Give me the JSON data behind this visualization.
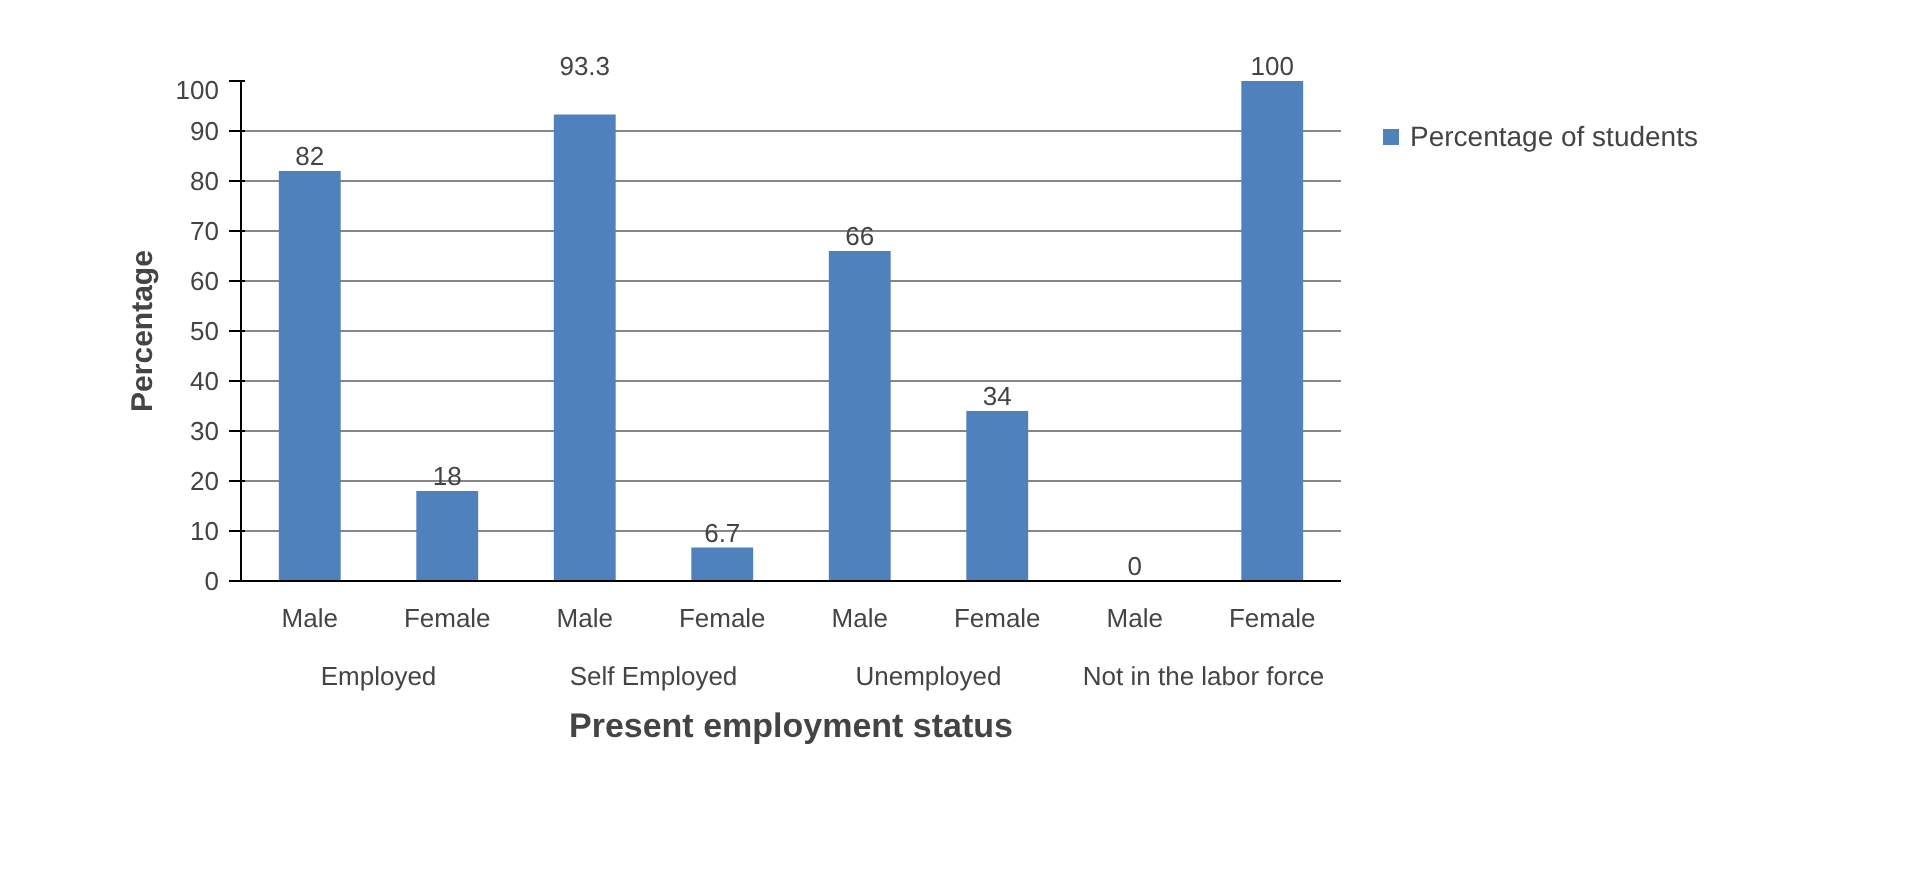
{
  "chart_data": {
    "type": "bar",
    "xlabel": "Present employment status",
    "ylabel": "Percentage",
    "categories": [
      "Male",
      "Female",
      "Male",
      "Female",
      "Male",
      "Female",
      "Male",
      "Female"
    ],
    "annotations": [
      "Employed",
      "Self Employed",
      "Unemployed",
      "Not in the labor force"
    ],
    "series": [
      {
        "name": "Percentage of students",
        "color": "#4f81bd",
        "values": [
          82,
          18,
          93.3,
          6.7,
          66,
          34,
          0,
          100
        ]
      }
    ],
    "ylim": [
      0,
      100
    ],
    "yticks": [
      0,
      10,
      20,
      30,
      40,
      50,
      60,
      70,
      80,
      90,
      100
    ],
    "grid": "y",
    "legend": "right",
    "data_labels": true
  }
}
